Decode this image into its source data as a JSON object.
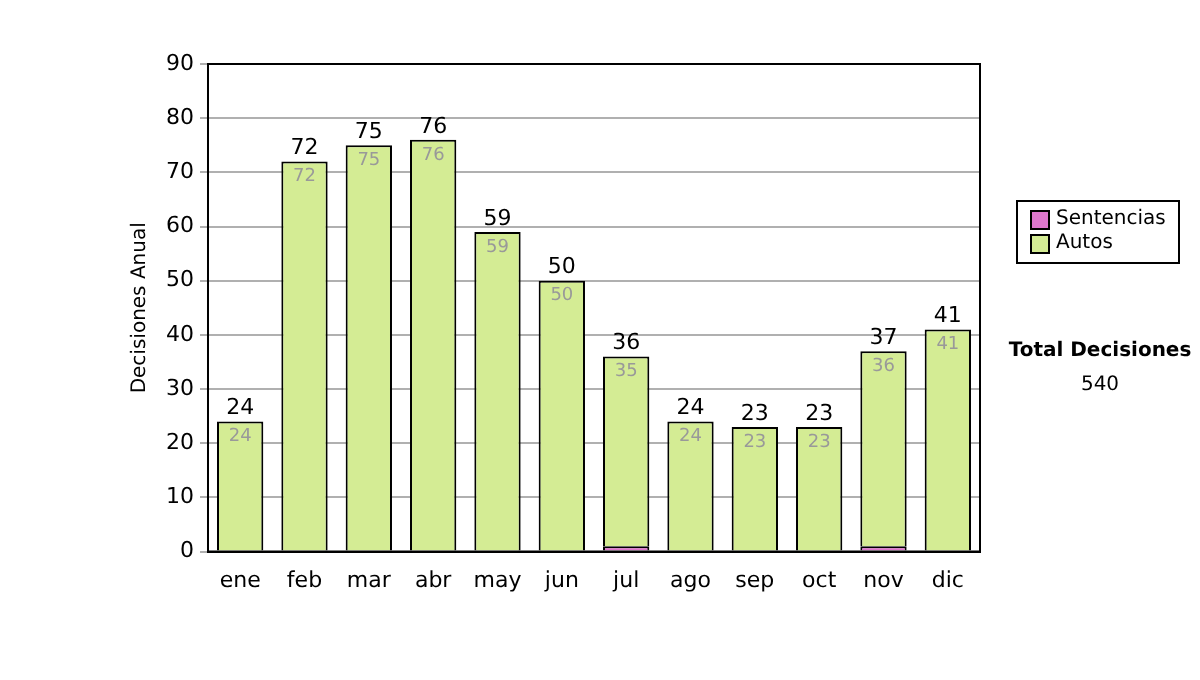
{
  "chart_data": {
    "type": "bar",
    "stacked": true,
    "ylabel": "Decisiones Anual",
    "categories": [
      "ene",
      "feb",
      "mar",
      "abr",
      "may",
      "jun",
      "jul",
      "ago",
      "sep",
      "oct",
      "nov",
      "dic"
    ],
    "series": [
      {
        "name": "Sentencias",
        "color": "#dd77cc",
        "values": [
          0,
          0,
          0,
          0,
          0,
          0,
          1,
          0,
          0,
          0,
          1,
          0
        ]
      },
      {
        "name": "Autos",
        "color": "#d4ec94",
        "values": [
          24,
          72,
          75,
          76,
          59,
          50,
          35,
          24,
          23,
          23,
          36,
          41
        ],
        "value_labels": [
          "24",
          "72",
          "75",
          "76",
          "59",
          "50",
          "35",
          "24",
          "23",
          "23",
          "36",
          "41"
        ]
      }
    ],
    "totals": [
      "24",
      "72",
      "75",
      "76",
      "59",
      "50",
      "36",
      "24",
      "23",
      "23",
      "37",
      "41"
    ],
    "ylim": [
      0,
      90
    ],
    "yticks": [
      0,
      10,
      20,
      30,
      40,
      50,
      60,
      70,
      80,
      90
    ],
    "grid": "y",
    "legend": "right",
    "annotations": [
      "Total Decisiones",
      "540"
    ]
  }
}
